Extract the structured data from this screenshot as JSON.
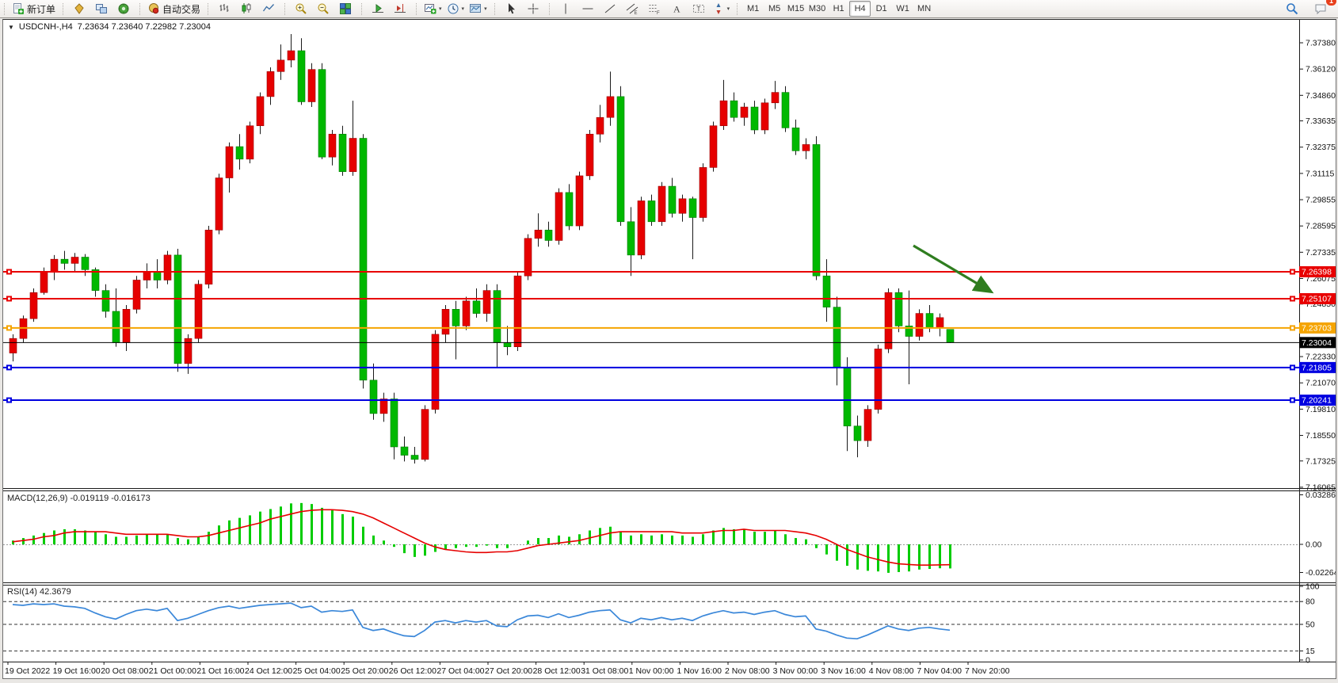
{
  "app": {
    "toolbar": {
      "groups": [
        {
          "items": [
            {
              "name": "new-order-button",
              "icon": "new-order",
              "label": "新订单"
            }
          ]
        },
        {
          "items": [
            {
              "name": "market-watch-button",
              "icon": "market-watch"
            },
            {
              "name": "data-window-button",
              "icon": "data-window"
            },
            {
              "name": "navigator-button",
              "icon": "navigator"
            }
          ]
        },
        {
          "items": [
            {
              "name": "autotrading-button",
              "icon": "autotrading",
              "label": "自动交易"
            }
          ]
        },
        {
          "items": [
            {
              "name": "bar-chart-button",
              "icon": "bar-chart"
            },
            {
              "name": "candlestick-chart-button",
              "icon": "candles"
            },
            {
              "name": "line-chart-button",
              "icon": "line-chart"
            }
          ]
        },
        {
          "items": [
            {
              "name": "zoom-in-button",
              "icon": "zoom-in"
            },
            {
              "name": "zoom-out-button",
              "icon": "zoom-out"
            },
            {
              "name": "tile-windows-button",
              "icon": "tile"
            }
          ]
        },
        {
          "items": [
            {
              "name": "auto-scroll-button",
              "icon": "auto-scroll"
            },
            {
              "name": "chart-shift-button",
              "icon": "chart-shift"
            }
          ]
        },
        {
          "items": [
            {
              "name": "new-chart-button",
              "icon": "new-chart",
              "dropdown": true
            },
            {
              "name": "periods-button",
              "icon": "clock",
              "dropdown": true
            },
            {
              "name": "templates-button",
              "icon": "template",
              "dropdown": true
            }
          ]
        },
        {
          "items": [
            {
              "name": "cursor-button",
              "icon": "cursor"
            },
            {
              "name": "crosshair-button",
              "icon": "crosshair"
            }
          ]
        },
        {
          "items": [
            {
              "name": "vertical-line-button",
              "icon": "vline"
            },
            {
              "name": "horizontal-line-button",
              "icon": "hline"
            },
            {
              "name": "trendline-button",
              "icon": "trendline"
            },
            {
              "name": "equidistant-channel-button",
              "icon": "channel"
            },
            {
              "name": "fibonacci-button",
              "icon": "fibo"
            },
            {
              "name": "text-button",
              "icon": "text"
            },
            {
              "name": "text-label-button",
              "icon": "label"
            },
            {
              "name": "arrows-button",
              "icon": "arrows",
              "dropdown": true
            }
          ]
        }
      ],
      "timeframes": [
        {
          "label": "M1"
        },
        {
          "label": "M5"
        },
        {
          "label": "M15"
        },
        {
          "label": "M30"
        },
        {
          "label": "H1"
        },
        {
          "label": "H4",
          "active": true
        },
        {
          "label": "D1"
        },
        {
          "label": "W1"
        },
        {
          "label": "MN"
        }
      ],
      "right": {
        "search_icon": "search",
        "chat_icon": "chat",
        "chat_badge": "1"
      }
    }
  },
  "chart": {
    "title": {
      "collapse_icon": "▼",
      "symbol_period": "USDCNH-,H4",
      "ohlc": "7.23634 7.23640 7.22982 7.23004"
    },
    "price_axis_ticks": [
      "7.37380",
      "7.36120",
      "7.34860",
      "7.33635",
      "7.32375",
      "7.31115",
      "7.29855",
      "7.28595",
      "7.27335",
      "7.26075",
      "7.24850",
      "7.23590",
      "7.22330",
      "7.21070",
      "7.19810",
      "7.18550",
      "7.17325",
      "7.16065"
    ],
    "hlines": [
      {
        "price": 7.26398,
        "label": "7.26398",
        "color": "#e80000"
      },
      {
        "price": 7.25107,
        "label": "7.25107",
        "color": "#e80000"
      },
      {
        "price": 7.23703,
        "label": "7.23703",
        "color": "#f5a400"
      },
      {
        "price": 7.21805,
        "label": "7.21805",
        "color": "#0000e0"
      },
      {
        "price": 7.20241,
        "label": "7.20241",
        "color": "#0000e0"
      }
    ],
    "current_price_line": {
      "price": 7.23004,
      "label": "7.23004",
      "color": "#000000"
    },
    "annotation_arrow": {
      "color": "#2f7d1f"
    },
    "time_axis_labels": [
      "19 Oct 2022",
      "19 Oct 16:00",
      "20 Oct 08:00",
      "21 Oct 00:00",
      "21 Oct 16:00",
      "24 Oct 12:00",
      "25 Oct 04:00",
      "25 Oct 20:00",
      "26 Oct 12:00",
      "27 Oct 04:00",
      "27 Oct 20:00",
      "28 Oct 12:00",
      "31 Oct 08:00",
      "1 Nov 00:00",
      "1 Nov 16:00",
      "2 Nov 08:00",
      "3 Nov 00:00",
      "3 Nov 16:00",
      "4 Nov 08:00",
      "7 Nov 04:00",
      "7 Nov 20:00"
    ]
  },
  "indicators": {
    "macd": {
      "label": "MACD(12,26,9) -0.019119 -0.016173",
      "axis_max": "0.032861",
      "axis_zero": "0.00",
      "axis_min": "-0.022641"
    },
    "rsi": {
      "label": "RSI(14) 42.3679",
      "axis_labels": [
        "100",
        "80",
        "50",
        "15",
        "0"
      ]
    }
  },
  "chart_data": [
    {
      "type": "candlestick",
      "title": "USDCNH-,H4",
      "up_color": "#e60000",
      "down_color": "#00b800",
      "price_range": [
        7.16065,
        7.3738
      ],
      "current_bar_ohlc": {
        "open": 7.23634,
        "high": 7.2364,
        "low": 7.22982,
        "close": 7.23004
      },
      "candles": [
        [
          7.225,
          7.234,
          7.221,
          7.232
        ],
        [
          7.232,
          7.243,
          7.23,
          7.2415
        ],
        [
          7.2415,
          7.256,
          7.24,
          7.254
        ],
        [
          7.254,
          7.266,
          7.253,
          7.264
        ],
        [
          7.264,
          7.272,
          7.26,
          7.27
        ],
        [
          7.27,
          7.274,
          7.265,
          7.268
        ],
        [
          7.268,
          7.273,
          7.264,
          7.271
        ],
        [
          7.271,
          7.2725,
          7.262,
          7.265
        ],
        [
          7.265,
          7.266,
          7.252,
          7.255
        ],
        [
          7.255,
          7.258,
          7.242,
          7.245
        ],
        [
          7.245,
          7.256,
          7.228,
          7.23
        ],
        [
          7.23,
          7.248,
          7.226,
          7.246
        ],
        [
          7.246,
          7.262,
          7.244,
          7.26
        ],
        [
          7.26,
          7.268,
          7.256,
          7.264
        ],
        [
          7.264,
          7.27,
          7.256,
          7.26
        ],
        [
          7.26,
          7.274,
          7.258,
          7.272
        ],
        [
          7.272,
          7.275,
          7.216,
          7.22
        ],
        [
          7.22,
          7.234,
          7.215,
          7.232
        ],
        [
          7.232,
          7.26,
          7.23,
          7.258
        ],
        [
          7.258,
          7.286,
          7.256,
          7.284
        ],
        [
          7.284,
          7.311,
          7.282,
          7.309
        ],
        [
          7.309,
          7.326,
          7.302,
          7.324
        ],
        [
          7.324,
          7.33,
          7.313,
          7.318
        ],
        [
          7.318,
          7.336,
          7.316,
          7.334
        ],
        [
          7.334,
          7.35,
          7.33,
          7.348
        ],
        [
          7.348,
          7.362,
          7.344,
          7.36
        ],
        [
          7.36,
          7.373,
          7.356,
          7.3655
        ],
        [
          7.3655,
          7.378,
          7.362,
          7.37
        ],
        [
          7.37,
          7.376,
          7.344,
          7.3455
        ],
        [
          7.3455,
          7.364,
          7.343,
          7.361
        ],
        [
          7.361,
          7.364,
          7.318,
          7.319
        ],
        [
          7.319,
          7.332,
          7.315,
          7.33
        ],
        [
          7.33,
          7.334,
          7.31,
          7.312
        ],
        [
          7.312,
          7.346,
          7.31,
          7.328
        ],
        [
          7.328,
          7.33,
          7.208,
          7.212
        ],
        [
          7.212,
          7.22,
          7.193,
          7.196
        ],
        [
          7.196,
          7.206,
          7.192,
          7.203
        ],
        [
          7.203,
          7.206,
          7.174,
          7.18
        ],
        [
          7.18,
          7.185,
          7.173,
          7.176
        ],
        [
          7.176,
          7.18,
          7.172,
          7.174
        ],
        [
          7.174,
          7.2,
          7.173,
          7.198
        ],
        [
          7.198,
          7.236,
          7.196,
          7.234
        ],
        [
          7.234,
          7.248,
          7.23,
          7.246
        ],
        [
          7.246,
          7.25,
          7.222,
          7.238
        ],
        [
          7.238,
          7.252,
          7.236,
          7.25
        ],
        [
          7.25,
          7.256,
          7.242,
          7.244
        ],
        [
          7.244,
          7.258,
          7.24,
          7.255
        ],
        [
          7.255,
          7.258,
          7.218,
          7.23
        ],
        [
          7.23,
          7.238,
          7.224,
          7.228
        ],
        [
          7.228,
          7.264,
          7.226,
          7.262
        ],
        [
          7.262,
          7.282,
          7.26,
          7.28
        ],
        [
          7.28,
          7.292,
          7.276,
          7.284
        ],
        [
          7.284,
          7.288,
          7.276,
          7.279
        ],
        [
          7.279,
          7.304,
          7.277,
          7.302
        ],
        [
          7.302,
          7.306,
          7.284,
          7.286
        ],
        [
          7.286,
          7.312,
          7.284,
          7.31
        ],
        [
          7.31,
          7.332,
          7.308,
          7.33
        ],
        [
          7.33,
          7.344,
          7.326,
          7.338
        ],
        [
          7.338,
          7.36,
          7.334,
          7.348
        ],
        [
          7.348,
          7.353,
          7.286,
          7.288
        ],
        [
          7.288,
          7.295,
          7.262,
          7.272
        ],
        [
          7.272,
          7.3,
          7.27,
          7.298
        ],
        [
          7.298,
          7.301,
          7.286,
          7.288
        ],
        [
          7.288,
          7.307,
          7.286,
          7.305
        ],
        [
          7.305,
          7.309,
          7.29,
          7.292
        ],
        [
          7.292,
          7.301,
          7.288,
          7.299
        ],
        [
          7.299,
          7.3,
          7.27,
          7.29
        ],
        [
          7.29,
          7.316,
          7.288,
          7.314
        ],
        [
          7.314,
          7.336,
          7.312,
          7.334
        ],
        [
          7.334,
          7.356,
          7.332,
          7.346
        ],
        [
          7.346,
          7.35,
          7.336,
          7.338
        ],
        [
          7.338,
          7.345,
          7.334,
          7.343
        ],
        [
          7.343,
          7.346,
          7.33,
          7.332
        ],
        [
          7.332,
          7.347,
          7.33,
          7.345
        ],
        [
          7.345,
          7.3555,
          7.342,
          7.35
        ],
        [
          7.35,
          7.353,
          7.331,
          7.333
        ],
        [
          7.333,
          7.337,
          7.32,
          7.322
        ],
        [
          7.322,
          7.328,
          7.318,
          7.325
        ],
        [
          7.325,
          7.329,
          7.26,
          7.262
        ],
        [
          7.262,
          7.27,
          7.24,
          7.247
        ],
        [
          7.247,
          7.252,
          7.2095,
          7.218
        ],
        [
          7.218,
          7.223,
          7.178,
          7.19
        ],
        [
          7.19,
          7.195,
          7.175,
          7.183
        ],
        [
          7.183,
          7.2,
          7.18,
          7.198
        ],
        [
          7.198,
          7.229,
          7.196,
          7.227
        ],
        [
          7.227,
          7.256,
          7.225,
          7.254
        ],
        [
          7.254,
          7.256,
          7.235,
          7.238
        ],
        [
          7.238,
          7.255,
          7.21,
          7.233
        ],
        [
          7.233,
          7.246,
          7.231,
          7.244
        ],
        [
          7.244,
          7.248,
          7.235,
          7.237
        ],
        [
          7.237,
          7.244,
          7.233,
          7.242
        ],
        [
          7.23634,
          7.2364,
          7.22982,
          7.23004
        ]
      ]
    },
    {
      "type": "bar",
      "title": "MACD(12,26,9)",
      "last_main": -0.019119,
      "last_signal": -0.016173,
      "ylim": [
        -0.022641,
        0.032861
      ],
      "histogram_color": "#00cc00",
      "signal_color": "#e60000",
      "histogram": [
        0.003,
        0.005,
        0.007,
        0.009,
        0.011,
        0.012,
        0.012,
        0.011,
        0.01,
        0.008,
        0.006,
        0.006,
        0.007,
        0.008,
        0.008,
        0.008,
        0.005,
        0.004,
        0.006,
        0.01,
        0.015,
        0.019,
        0.021,
        0.023,
        0.026,
        0.028,
        0.03,
        0.0325,
        0.0328,
        0.032,
        0.029,
        0.027,
        0.024,
        0.022,
        0.014,
        0.007,
        0.003,
        -0.002,
        -0.007,
        -0.01,
        -0.009,
        -0.006,
        -0.004,
        -0.003,
        -0.002,
        -0.002,
        -0.001,
        -0.003,
        -0.003,
        0.0,
        0.003,
        0.005,
        0.005,
        0.007,
        0.006,
        0.008,
        0.011,
        0.013,
        0.014,
        0.01,
        0.007,
        0.008,
        0.007,
        0.008,
        0.007,
        0.007,
        0.006,
        0.008,
        0.011,
        0.013,
        0.012,
        0.012,
        0.01,
        0.01,
        0.011,
        0.008,
        0.005,
        0.004,
        -0.003,
        -0.008,
        -0.013,
        -0.017,
        -0.02,
        -0.021,
        -0.0215,
        -0.0226,
        -0.022,
        -0.0215,
        -0.02,
        -0.0195,
        -0.019,
        -0.019119
      ],
      "signal": [
        0.002,
        0.003,
        0.004,
        0.006,
        0.007,
        0.009,
        0.01,
        0.01,
        0.01,
        0.01,
        0.009,
        0.008,
        0.008,
        0.008,
        0.008,
        0.008,
        0.007,
        0.006,
        0.006,
        0.007,
        0.009,
        0.011,
        0.013,
        0.015,
        0.017,
        0.02,
        0.022,
        0.024,
        0.026,
        0.027,
        0.0275,
        0.0275,
        0.027,
        0.026,
        0.024,
        0.021,
        0.017,
        0.013,
        0.009,
        0.005,
        0.001,
        -0.002,
        -0.004,
        -0.005,
        -0.006,
        -0.0065,
        -0.0065,
        -0.006,
        -0.006,
        -0.005,
        -0.003,
        -0.001,
        0.0,
        0.001,
        0.002,
        0.003,
        0.005,
        0.007,
        0.009,
        0.01,
        0.01,
        0.01,
        0.01,
        0.01,
        0.01,
        0.009,
        0.009,
        0.009,
        0.01,
        0.011,
        0.011,
        0.012,
        0.011,
        0.011,
        0.011,
        0.011,
        0.01,
        0.009,
        0.007,
        0.004,
        0.0,
        -0.004,
        -0.007,
        -0.01,
        -0.012,
        -0.014,
        -0.0155,
        -0.016,
        -0.0165,
        -0.0165,
        -0.0163,
        -0.016173
      ]
    },
    {
      "type": "line",
      "title": "RSI(14)",
      "last_value": 42.3679,
      "ylim": [
        0,
        100
      ],
      "levels": [
        80,
        50,
        15
      ],
      "line_color": "#3a87d9",
      "values": [
        76,
        75,
        77,
        76,
        77,
        74,
        73,
        71,
        65,
        60,
        57,
        63,
        68,
        70,
        68,
        71,
        55,
        58,
        63,
        68,
        72,
        74,
        71,
        73,
        75,
        76,
        77,
        78,
        72,
        74,
        66,
        68,
        67,
        69,
        46,
        42,
        44,
        39,
        35,
        34,
        42,
        53,
        55,
        52,
        55,
        53,
        55,
        48,
        47,
        56,
        61,
        62,
        59,
        64,
        59,
        62,
        66,
        68,
        69,
        56,
        52,
        58,
        56,
        59,
        56,
        58,
        55,
        61,
        65,
        68,
        65,
        66,
        63,
        66,
        68,
        63,
        60,
        61,
        44,
        41,
        36,
        32,
        31,
        36,
        42,
        48,
        44,
        42,
        45,
        46,
        44,
        42.37
      ]
    }
  ]
}
